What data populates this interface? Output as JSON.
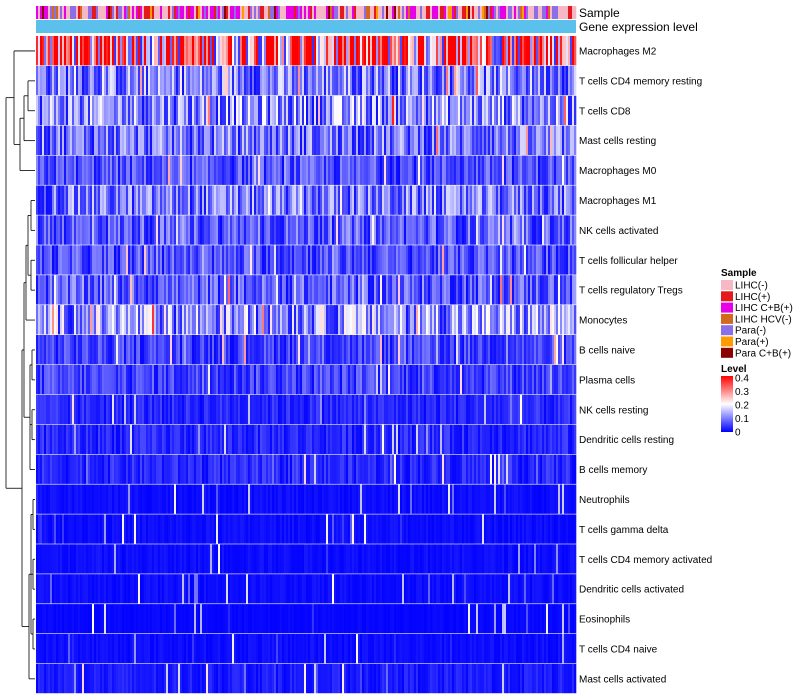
{
  "chart_data": {
    "type": "heatmap",
    "title": "",
    "annotation_tracks": [
      "Sample",
      "Gene expression level"
    ],
    "rows": [
      "Macrophages M2",
      "T cells CD4 memory resting",
      "T cells CD8",
      "Mast cells resting",
      "Macrophages M0",
      "Macrophages M1",
      "NK cells activated",
      "T cells follicular helper",
      "T cells regulatory  Tregs",
      "Monocytes",
      "B cells naive",
      "Plasma cells",
      "NK cells resting",
      "Dendritic cells resting",
      "B cells memory",
      "Neutrophils",
      "T cells gamma delta",
      "T cells CD4 memory activated",
      "Dendritic cells activated",
      "Eosinophils",
      "T cells CD4 naive",
      "Mast cells activated"
    ],
    "row_mean_levels": [
      0.3,
      0.1,
      0.11,
      0.09,
      0.06,
      0.09,
      0.07,
      0.06,
      0.07,
      0.12,
      0.05,
      0.05,
      0.03,
      0.03,
      0.03,
      0.01,
      0.01,
      0.01,
      0.01,
      0.005,
      0.01,
      0.02
    ],
    "sample_legend": {
      "title": "Sample",
      "items": [
        {
          "label": "LIHC(-)",
          "color": "#f5b8c4"
        },
        {
          "label": "LIHC(+)",
          "color": "#e41a1c"
        },
        {
          "label": "LIHC C+B(+)",
          "color": "#e600e6"
        },
        {
          "label": "LIHC HCV(-)",
          "color": "#d2691e"
        },
        {
          "label": "Para(-)",
          "color": "#8c6ee6"
        },
        {
          "label": "Para(+)",
          "color": "#ff9a00"
        },
        {
          "label": "Para C+B(+)",
          "color": "#8b0000"
        }
      ]
    },
    "level_legend": {
      "title": "Level",
      "ticks": [
        "0.4",
        "0.3",
        "0.2",
        "0.1",
        "0"
      ],
      "range": [
        0,
        0.4
      ],
      "colors": [
        "#0000ff",
        "#ffffff",
        "#ff0000"
      ]
    },
    "expression_bar_color": "#5bc0eb"
  }
}
